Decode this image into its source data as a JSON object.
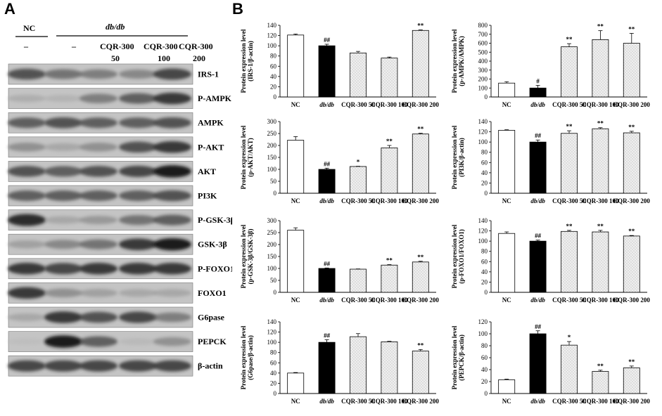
{
  "panels": {
    "a": "A",
    "b": "B"
  },
  "panel_a": {
    "group_nc": "NC",
    "group_dbdb": "db/db",
    "lane_labels": [
      {
        "top": "–",
        "bottom": ""
      },
      {
        "top": "–",
        "bottom": ""
      },
      {
        "top": "CQR-300",
        "bottom": "50"
      },
      {
        "top": "CQR-300",
        "bottom": "100"
      },
      {
        "top": "CQR-300",
        "bottom": "200"
      }
    ],
    "blots": [
      {
        "label": "IRS-1",
        "intensity": [
          0.75,
          0.6,
          0.55,
          0.5,
          0.8
        ]
      },
      {
        "label": "P-AMPK",
        "intensity": [
          0.25,
          0.2,
          0.55,
          0.7,
          0.85
        ]
      },
      {
        "label": "AMPK",
        "intensity": [
          0.7,
          0.75,
          0.7,
          0.7,
          0.75
        ]
      },
      {
        "label": "P-AKT",
        "intensity": [
          0.45,
          0.3,
          0.45,
          0.75,
          0.85
        ]
      },
      {
        "label": "AKT",
        "intensity": [
          0.75,
          0.7,
          0.75,
          0.8,
          0.95
        ]
      },
      {
        "label": "PI3K",
        "intensity": [
          0.7,
          0.7,
          0.7,
          0.7,
          0.75
        ]
      },
      {
        "label": "P-GSK-3β",
        "intensity": [
          0.9,
          0.3,
          0.4,
          0.6,
          0.7
        ]
      },
      {
        "label": "GSK-3β",
        "intensity": [
          0.35,
          0.5,
          0.6,
          0.85,
          0.95
        ]
      },
      {
        "label": "P-FOXO1",
        "intensity": [
          0.85,
          0.8,
          0.85,
          0.85,
          0.85
        ]
      },
      {
        "label": "FOXO1",
        "intensity": [
          0.85,
          0.45,
          0.35,
          0.3,
          0.3
        ]
      },
      {
        "label": "G6pase",
        "intensity": [
          0.3,
          0.85,
          0.75,
          0.8,
          0.55
        ]
      },
      {
        "label": "PEPCK",
        "intensity": [
          0.1,
          0.95,
          0.7,
          0.15,
          0.45
        ]
      },
      {
        "label": "β-actin",
        "intensity": [
          0.8,
          0.8,
          0.8,
          0.8,
          0.8
        ]
      }
    ]
  },
  "chart_data": [
    {
      "type": "bar",
      "ylabel": [
        "Protein expression level",
        "(IRS-1/β-actin)"
      ],
      "categories": [
        "NC",
        "db/db",
        "CQR-300 50",
        "CQR-300 100",
        "CQR-300 200"
      ],
      "values": [
        121,
        100,
        86,
        76,
        130
      ],
      "errors": [
        2,
        3,
        3,
        2,
        1
      ],
      "significance": [
        "",
        "##",
        "",
        "",
        "**"
      ],
      "ylim": [
        0,
        140
      ],
      "yticks": [
        0,
        20,
        40,
        60,
        80,
        100,
        120,
        140
      ]
    },
    {
      "type": "bar",
      "ylabel": [
        "Protein expression level",
        "(p-AMPK/AMPK)"
      ],
      "categories": [
        "NC",
        "db/db",
        "CQR-300 50",
        "CQR-300 100",
        "CQR-300 200"
      ],
      "values": [
        155,
        100,
        560,
        640,
        600
      ],
      "errors": [
        15,
        30,
        35,
        100,
        110
      ],
      "significance": [
        "",
        "#",
        "**",
        "**",
        "**"
      ],
      "ylim": [
        0,
        800
      ],
      "yticks": [
        0,
        100,
        200,
        300,
        400,
        500,
        600,
        700,
        800
      ]
    },
    {
      "type": "bar",
      "ylabel": [
        "Protein expression level",
        "(p-AKT/AKT)"
      ],
      "categories": [
        "NC",
        "db/db",
        "CQR-300 50",
        "CQR-300 100",
        "CQR-300 200"
      ],
      "values": [
        222,
        100,
        112,
        190,
        248
      ],
      "errors": [
        15,
        5,
        1,
        10,
        3
      ],
      "significance": [
        "",
        "##",
        "*",
        "**",
        "**"
      ],
      "ylim": [
        0,
        300
      ],
      "yticks": [
        0,
        50,
        100,
        150,
        200,
        250,
        300
      ]
    },
    {
      "type": "bar",
      "ylabel": [
        "Protein expression level",
        "(PI3K/β-actin)"
      ],
      "categories": [
        "NC",
        "db/db",
        "CQR-300 50",
        "CQR-300 100",
        "CQR-300 200"
      ],
      "values": [
        123,
        100,
        117,
        126,
        118
      ],
      "errors": [
        1,
        4,
        5,
        2,
        3
      ],
      "significance": [
        "",
        "##",
        "**",
        "**",
        "**"
      ],
      "ylim": [
        0,
        140
      ],
      "yticks": [
        0,
        20,
        40,
        60,
        80,
        100,
        120,
        140
      ]
    },
    {
      "type": "bar",
      "ylabel": [
        "Protein expression level",
        "(p-GSK-3β/GSK-3β)"
      ],
      "categories": [
        "NC",
        "db/db",
        "CQR-300 50",
        "CQR-300 100",
        "CQR-300 200"
      ],
      "values": [
        260,
        100,
        97,
        114,
        127
      ],
      "errors": [
        10,
        2,
        1,
        2,
        3
      ],
      "significance": [
        "",
        "##",
        "",
        "**",
        "**"
      ],
      "ylim": [
        0,
        300
      ],
      "yticks": [
        0,
        50,
        100,
        150,
        200,
        250,
        300
      ]
    },
    {
      "type": "bar",
      "ylabel": [
        "Protein expression level",
        "(p-FOXO1/FOXO1)"
      ],
      "categories": [
        "NC",
        "db/db",
        "CQR-300 50",
        "CQR-300 100",
        "CQR-300 200"
      ],
      "values": [
        115,
        100,
        119,
        118,
        110
      ],
      "errors": [
        3,
        2,
        2,
        3,
        1
      ],
      "significance": [
        "",
        "##",
        "**",
        "**",
        "**"
      ],
      "ylim": [
        0,
        140
      ],
      "yticks": [
        0,
        20,
        40,
        60,
        80,
        100,
        120,
        140
      ]
    },
    {
      "type": "bar",
      "ylabel": [
        "Protein expression level",
        "(G6pase/β-actin)"
      ],
      "categories": [
        "NC",
        "db/db",
        "CQR-300 50",
        "CQR-300 100",
        "CQR-300 200"
      ],
      "values": [
        40,
        100,
        111,
        101,
        83
      ],
      "errors": [
        1,
        5,
        6,
        1,
        3
      ],
      "significance": [
        "",
        "##",
        "",
        "",
        "**"
      ],
      "ylim": [
        0,
        140
      ],
      "yticks": [
        0,
        20,
        40,
        60,
        80,
        100,
        120,
        140
      ]
    },
    {
      "type": "bar",
      "ylabel": [
        "Protein expression level",
        "(PEPCK/β-actin)"
      ],
      "categories": [
        "NC",
        "db/db",
        "CQR-300 50",
        "CQR-300 100",
        "CQR-300 200"
      ],
      "values": [
        23,
        100,
        81,
        37,
        43
      ],
      "errors": [
        1,
        5,
        6,
        2,
        3
      ],
      "significance": [
        "",
        "##",
        "*",
        "**",
        "**"
      ],
      "ylim": [
        0,
        120
      ],
      "yticks": [
        0,
        20,
        40,
        60,
        80,
        100,
        120
      ]
    }
  ],
  "colors": {
    "white_bar": "#ffffff",
    "black_bar": "#000000",
    "dotted_bar": "#efefef",
    "dot": "#9a9a9a",
    "blot_bg": "#c4c4c4"
  }
}
